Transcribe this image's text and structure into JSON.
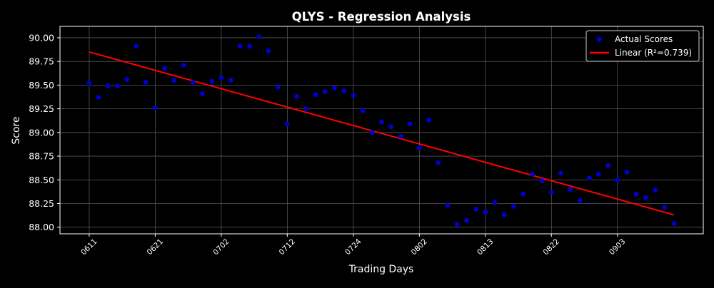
{
  "chart_data": {
    "type": "scatter",
    "title": "QLYS - Regression Analysis",
    "xlabel": "Trading Days",
    "ylabel": "Score",
    "ylim": [
      87.93,
      90.12
    ],
    "xlim": [
      -3.1,
      65.1
    ],
    "grid": true,
    "legend_position": "top-right",
    "colors": {
      "background": "#000000",
      "points": "#0000cd",
      "line": "#ff0000",
      "grid": "#555555",
      "axes": "#ffffff"
    },
    "y_ticks": [
      {
        "value": 88.0,
        "label": "88.00"
      },
      {
        "value": 88.25,
        "label": "88.25"
      },
      {
        "value": 88.5,
        "label": "88.50"
      },
      {
        "value": 88.75,
        "label": "88.75"
      },
      {
        "value": 89.0,
        "label": "89.00"
      },
      {
        "value": 89.25,
        "label": "89.25"
      },
      {
        "value": 89.5,
        "label": "89.50"
      },
      {
        "value": 89.75,
        "label": "89.75"
      },
      {
        "value": 90.0,
        "label": "90.00"
      }
    ],
    "x_ticks": [
      {
        "index": 0,
        "label": "0611"
      },
      {
        "index": 7,
        "label": "0621"
      },
      {
        "index": 14,
        "label": "0702"
      },
      {
        "index": 21,
        "label": "0712"
      },
      {
        "index": 28,
        "label": "0724"
      },
      {
        "index": 35,
        "label": "0802"
      },
      {
        "index": 42,
        "label": "0813"
      },
      {
        "index": 49,
        "label": "0822"
      },
      {
        "index": 56,
        "label": "0903"
      }
    ],
    "series": [
      {
        "name": "Actual Scores",
        "kind": "scatter",
        "values": [
          89.52,
          89.37,
          89.49,
          89.49,
          89.56,
          89.91,
          89.53,
          89.26,
          89.68,
          89.55,
          89.71,
          89.53,
          89.41,
          89.54,
          89.58,
          89.55,
          89.91,
          89.91,
          90.01,
          89.86,
          89.48,
          89.09,
          89.38,
          89.25,
          89.4,
          89.43,
          89.47,
          89.44,
          89.39,
          89.23,
          89.0,
          89.11,
          89.06,
          88.96,
          89.09,
          88.84,
          89.13,
          88.68,
          88.23,
          88.03,
          88.07,
          88.19,
          88.16,
          88.26,
          88.13,
          88.22,
          88.35,
          88.56,
          88.49,
          88.37,
          88.57,
          88.4,
          88.28,
          88.52,
          88.56,
          88.65,
          88.5,
          88.58,
          88.35,
          88.31,
          88.39,
          88.21,
          88.04
        ]
      },
      {
        "name": "Linear (R²=0.739)",
        "kind": "line",
        "x": [
          0,
          62
        ],
        "values": [
          89.85,
          88.13
        ]
      }
    ]
  }
}
